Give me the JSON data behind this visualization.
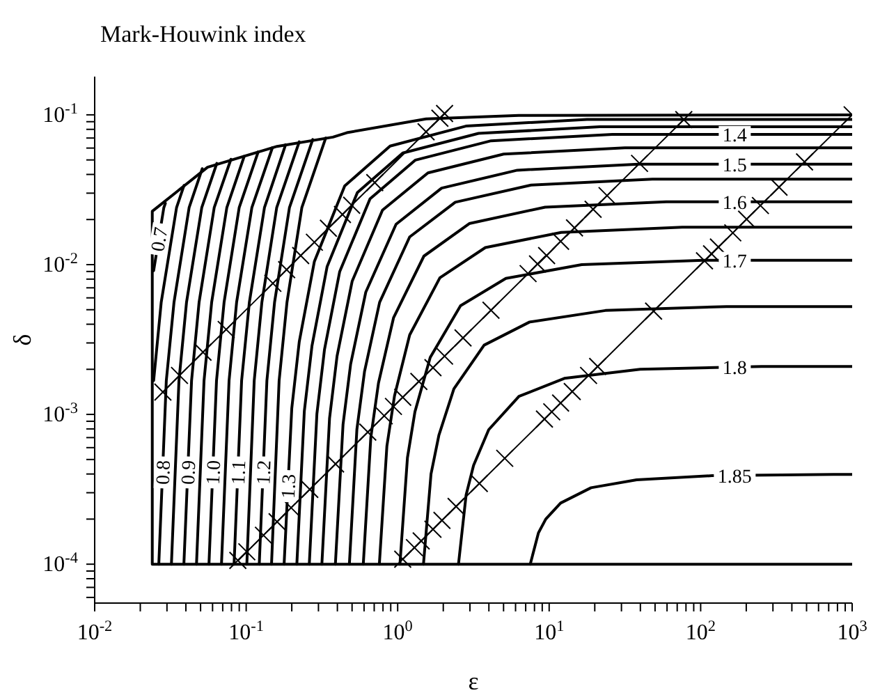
{
  "chart_data": {
    "type": "line",
    "title": "Mark-Houwink index",
    "xlabel": "ε",
    "ylabel": "δ",
    "log": "xy",
    "marker": "none",
    "line_style": "solid",
    "xlim": [
      0.01,
      1000
    ],
    "ylim": [
      5.5e-05,
      0.18
    ],
    "xticks": [
      {
        "value": 0.01,
        "label": "10$^{-2}$"
      },
      {
        "value": 0.02,
        "label": null
      },
      {
        "value": 0.03,
        "label": null
      },
      {
        "value": 0.04,
        "label": null
      },
      {
        "value": 0.05,
        "label": null
      },
      {
        "value": 0.06,
        "label": null
      },
      {
        "value": 0.07,
        "label": null
      },
      {
        "value": 0.08,
        "label": null
      },
      {
        "value": 0.09,
        "label": null
      },
      {
        "value": 0.1,
        "label": "10$^{-1}$"
      },
      {
        "value": 0.2,
        "label": null
      },
      {
        "value": 0.3,
        "label": null
      },
      {
        "value": 0.4,
        "label": null
      },
      {
        "value": 0.5,
        "label": null
      },
      {
        "value": 0.6,
        "label": null
      },
      {
        "value": 0.7,
        "label": null
      },
      {
        "value": 0.8,
        "label": null
      },
      {
        "value": 0.9,
        "label": null
      },
      {
        "value": 1,
        "label": "10$^{0}$"
      },
      {
        "value": 2,
        "label": null
      },
      {
        "value": 3,
        "label": null
      },
      {
        "value": 4,
        "label": null
      },
      {
        "value": 5,
        "label": null
      },
      {
        "value": 6,
        "label": null
      },
      {
        "value": 7,
        "label": null
      },
      {
        "value": 8,
        "label": null
      },
      {
        "value": 9,
        "label": null
      },
      {
        "value": 10,
        "label": "10$^{1}$"
      },
      {
        "value": 20,
        "label": null
      },
      {
        "value": 30,
        "label": null
      },
      {
        "value": 40,
        "label": null
      },
      {
        "value": 50,
        "label": null
      },
      {
        "value": 60,
        "label": null
      },
      {
        "value": 70,
        "label": null
      },
      {
        "value": 80,
        "label": null
      },
      {
        "value": 90,
        "label": null
      },
      {
        "value": 100,
        "label": "10$^{2}$"
      },
      {
        "value": 200,
        "label": null
      },
      {
        "value": 300,
        "label": null
      },
      {
        "value": 400,
        "label": null
      },
      {
        "value": 500,
        "label": null
      },
      {
        "value": 600,
        "label": null
      },
      {
        "value": 700,
        "label": null
      },
      {
        "value": 800,
        "label": null
      },
      {
        "value": 900,
        "label": null
      },
      {
        "value": 1000,
        "label": "10$^{3}$"
      }
    ],
    "yticks": [
      {
        "value": 6e-05,
        "label": null
      },
      {
        "value": 7e-05,
        "label": null
      },
      {
        "value": 8e-05,
        "label": null
      },
      {
        "value": 9e-05,
        "label": null
      },
      {
        "value": 0.0001,
        "label": "10$^{-4}$"
      },
      {
        "value": 0.0002,
        "label": null
      },
      {
        "value": 0.0003,
        "label": null
      },
      {
        "value": 0.0004,
        "label": null
      },
      {
        "value": 0.0005,
        "label": null
      },
      {
        "value": 0.0006,
        "label": null
      },
      {
        "value": 0.0007,
        "label": null
      },
      {
        "value": 0.0008,
        "label": null
      },
      {
        "value": 0.0009,
        "label": null
      },
      {
        "value": 0.001,
        "label": "10$^{-3}$"
      },
      {
        "value": 0.002,
        "label": null
      },
      {
        "value": 0.003,
        "label": null
      },
      {
        "value": 0.004,
        "label": null
      },
      {
        "value": 0.005,
        "label": null
      },
      {
        "value": 0.006,
        "label": null
      },
      {
        "value": 0.007,
        "label": null
      },
      {
        "value": 0.008,
        "label": null
      },
      {
        "value": 0.009,
        "label": null
      },
      {
        "value": 0.01,
        "label": "10$^{-2}$"
      },
      {
        "value": 0.02,
        "label": null
      },
      {
        "value": 0.03,
        "label": null
      },
      {
        "value": 0.04,
        "label": null
      },
      {
        "value": 0.05,
        "label": null
      },
      {
        "value": 0.06,
        "label": null
      },
      {
        "value": 0.07,
        "label": null
      },
      {
        "value": 0.08,
        "label": null
      },
      {
        "value": 0.09,
        "label": null
      },
      {
        "value": 0.1,
        "label": "10$^{-1}$"
      }
    ],
    "series": [
      {
        "name": "0.7",
        "color": "#000000",
        "x": [
          0.0245,
          0.0286,
          0.0293
        ],
        "values": [
          0.0091,
          0.024,
          0.0257
        ]
      },
      {
        "color": "#000000",
        "x": [
          0.0245,
          0.0275,
          0.0347,
          0.0389
        ],
        "values": [
          0.00168,
          0.00562,
          0.024,
          0.0338
        ]
      },
      {
        "name": "0.8",
        "color": "#000000",
        "x": [
          0.0265,
          0.0297,
          0.0334,
          0.042,
          0.0513
        ],
        "values": [
          0.0001,
          0.00168,
          0.00562,
          0.024,
          0.0437
        ]
      },
      {
        "color": "#000000",
        "x": [
          0.0321,
          0.036,
          0.0404,
          0.0509,
          0.064
        ],
        "values": [
          0.0001,
          0.00168,
          0.00562,
          0.024,
          0.0474
        ]
      },
      {
        "name": "0.9",
        "color": "#000000",
        "x": [
          0.0388,
          0.0436,
          0.0489,
          0.0615,
          0.0793
        ],
        "values": [
          0.0001,
          0.00168,
          0.00562,
          0.024,
          0.0505
        ]
      },
      {
        "color": "#000000",
        "x": [
          0.047,
          0.0527,
          0.0592,
          0.0745,
          0.097
        ],
        "values": [
          0.0001,
          0.00168,
          0.00562,
          0.024,
          0.0528
        ]
      },
      {
        "name": "1.0",
        "color": "#000000",
        "x": [
          0.0568,
          0.0637,
          0.0715,
          0.0899,
          0.12
        ],
        "values": [
          0.0001,
          0.00168,
          0.00562,
          0.024,
          0.0566
        ]
      },
      {
        "color": "#000000",
        "x": [
          0.0687,
          0.0771,
          0.0865,
          0.109,
          0.149
        ],
        "values": [
          0.0001,
          0.00168,
          0.00562,
          0.024,
          0.0603
        ]
      },
      {
        "name": "1.1",
        "color": "#000000",
        "x": [
          0.0832,
          0.0933,
          0.105,
          0.132,
          0.182
        ],
        "values": [
          0.0001,
          0.00168,
          0.00562,
          0.024,
          0.0631
        ]
      },
      {
        "color": "#000000",
        "x": [
          0.101,
          0.113,
          0.127,
          0.159,
          0.224
        ],
        "values": [
          0.0001,
          0.00168,
          0.00562,
          0.024,
          0.0661
        ]
      },
      {
        "name": "1.2",
        "color": "#000000",
        "x": [
          0.122,
          0.137,
          0.154,
          0.193,
          0.275
        ],
        "values": [
          0.0001,
          0.00168,
          0.00562,
          0.024,
          0.0684
        ]
      },
      {
        "color": "#000000",
        "x": [
          0.147,
          0.165,
          0.186,
          0.233,
          0.335
        ],
        "values": [
          0.0001,
          0.00168,
          0.00562,
          0.024,
          0.07
        ]
      },
      {
        "name": "1.3",
        "color": "#000000",
        "x": [
          0.178,
          0.2,
          0.224,
          0.282,
          0.447,
          0.891,
          2.82,
          17.8,
          1000
        ],
        "values": [
          0.0001,
          0.0011,
          0.00305,
          0.0105,
          0.0335,
          0.0619,
          0.0841,
          0.0933,
          0.0933
        ]
      },
      {
        "color": "#000000",
        "x": [
          0.216,
          0.242,
          0.272,
          0.342,
          0.542,
          1.08,
          3.42,
          21.6,
          1000
        ],
        "values": [
          0.0001,
          0.00105,
          0.00288,
          0.00968,
          0.0303,
          0.0556,
          0.0752,
          0.0832,
          0.0832
        ]
      },
      {
        "name": "1.4",
        "color": "#000000",
        "x": [
          0.261,
          0.293,
          0.329,
          0.414,
          0.657,
          1.31,
          4.14,
          26.1,
          1000
        ],
        "values": [
          0.0001,
          0.00101,
          0.00272,
          0.00895,
          0.0275,
          0.0499,
          0.0671,
          0.0741,
          0.0741
        ]
      },
      {
        "color": "#000000",
        "x": [
          0.316,
          0.355,
          0.398,
          0.501,
          0.794,
          1.585,
          5.01,
          31.6,
          1000
        ],
        "values": [
          0.0001,
          0.00094,
          0.00245,
          0.00776,
          0.0231,
          0.041,
          0.0547,
          0.0603,
          0.0603
        ]
      },
      {
        "name": "1.5",
        "color": "#000000",
        "x": [
          0.388,
          0.436,
          0.489,
          0.616,
          0.976,
          1.95,
          6.16,
          38.8,
          1000
        ],
        "values": [
          0.0001,
          0.00086,
          0.00216,
          0.00655,
          0.0186,
          0.0324,
          0.0427,
          0.0468,
          0.0468
        ]
      },
      {
        "color": "#000000",
        "x": [
          0.48,
          0.538,
          0.604,
          0.76,
          1.2,
          2.4,
          7.6,
          48,
          1000
        ],
        "values": [
          0.0001,
          0.000794,
          0.00193,
          0.0056,
          0.0153,
          0.0261,
          0.034,
          0.0372,
          0.0372
        ]
      },
      {
        "name": "1.6",
        "color": "#000000",
        "x": [
          0.593,
          0.665,
          0.747,
          0.94,
          1.49,
          2.97,
          9.4,
          59.3,
          1000
        ],
        "values": [
          0.0001,
          0.000703,
          0.00162,
          0.00443,
          0.0114,
          0.0188,
          0.0242,
          0.0263,
          0.0263
        ]
      },
      {
        "color": "#000000",
        "x": [
          0.757,
          0.849,
          0.953,
          1.2,
          1.9,
          3.79,
          12,
          75.7,
          1000
        ],
        "values": [
          0.0001,
          0.000615,
          0.00133,
          0.00339,
          0.00817,
          0.013,
          0.0164,
          0.0178,
          0.0178
        ]
      },
      {
        "name": "1.7",
        "color": "#000000",
        "x": [
          1.035,
          1.16,
          1.3,
          1.64,
          2.6,
          5.18,
          16.4,
          104,
          1000
        ],
        "values": [
          0.0001,
          0.000513,
          0.00104,
          0.0024,
          0.00532,
          0.00809,
          0.01,
          0.0107,
          0.0107
        ]
      },
      {
        "color": "#000000",
        "x": [
          1.48,
          1.66,
          1.87,
          2.35,
          3.72,
          7.43,
          23.5,
          148,
          1000
        ],
        "values": [
          0.0001,
          0.0004,
          0.000724,
          0.00148,
          0.0029,
          0.00414,
          0.00494,
          0.00525,
          0.00525
        ]
      },
      {
        "name": "1.8",
        "color": "#000000",
        "x": [
          2.52,
          2.83,
          3.17,
          3.99,
          6.32,
          12.6,
          39.9,
          252,
          1000
        ],
        "values": [
          0.0001,
          0.00029,
          0.000457,
          0.000791,
          0.00132,
          0.00174,
          0.002,
          0.00209,
          0.00209
        ]
      },
      {
        "name": "1.85",
        "color": "#000000",
        "x": [
          7.5,
          8.5,
          9.5,
          11.9,
          18.9,
          37.8,
          119,
          753,
          1000
        ],
        "values": [
          0.0001,
          0.000162,
          0.0002,
          0.000256,
          0.000324,
          0.000366,
          0.00039,
          0.000398,
          0.000398
        ]
      },
      {
        "color": "#000000",
        "marker": "cross",
        "x": [
          0.0282,
          0.0363,
          0.0519,
          0.0738,
          0.15,
          0.185,
          0.229,
          0.282,
          0.349,
          0.432,
          0.497,
          0.706,
          1.54,
          1.9,
          2.04
        ],
        "values": [
          0.00141,
          0.00182,
          0.0026,
          0.00369,
          0.0075,
          0.00925,
          0.0115,
          0.0141,
          0.0175,
          0.0216,
          0.0249,
          0.0353,
          0.077,
          0.095,
          0.102
        ]
      },
      {
        "color": "#000000",
        "marker": "cross",
        "x": [
          0.0881,
          0.101,
          0.13,
          0.16,
          0.198,
          0.263,
          0.389,
          0.635,
          0.815,
          0.938,
          1.08,
          1.38,
          1.71,
          2.04,
          2.7,
          4.13,
          7.26,
          8.38,
          9.62,
          11.9,
          14.7,
          19.5,
          24.1,
          39.5,
          77.4
        ],
        "values": [
          0.000106,
          0.000121,
          0.000156,
          0.000192,
          0.000238,
          0.000316,
          0.000467,
          0.000762,
          0.000978,
          0.00113,
          0.0013,
          0.00166,
          0.00205,
          0.00245,
          0.00324,
          0.00496,
          0.00871,
          0.0101,
          0.0115,
          0.0143,
          0.0176,
          0.0234,
          0.0289,
          0.0474,
          0.0929
        ]
      },
      {
        "color": "#000000",
        "marker": "cross",
        "x": [
          1.08,
          1.29,
          1.43,
          1.71,
          1.96,
          2.43,
          3.46,
          5.09,
          9.31,
          10.4,
          11.9,
          14.2,
          18.2,
          20.9,
          48.9,
          106,
          118,
          131,
          163,
          201,
          248,
          329,
          485,
          1000
        ],
        "values": [
          0.000108,
          0.000129,
          0.000143,
          0.000171,
          0.000196,
          0.000243,
          0.000346,
          0.000509,
          0.000931,
          0.00104,
          0.00119,
          0.00142,
          0.00182,
          0.00209,
          0.00489,
          0.0106,
          0.0118,
          0.0131,
          0.0163,
          0.0201,
          0.0248,
          0.0329,
          0.0485,
          0.1
        ]
      },
      {
        "color": "#000000",
        "x": [
          1000,
          0.024,
          0.024,
          0.0556,
          0.16,
          0.374,
          0.462,
          1.54,
          6.3,
          1000
        ],
        "values": [
          0.0001,
          0.0001,
          0.0227,
          0.0447,
          0.0616,
          0.071,
          0.076,
          0.094,
          0.099,
          0.1
        ]
      }
    ]
  }
}
